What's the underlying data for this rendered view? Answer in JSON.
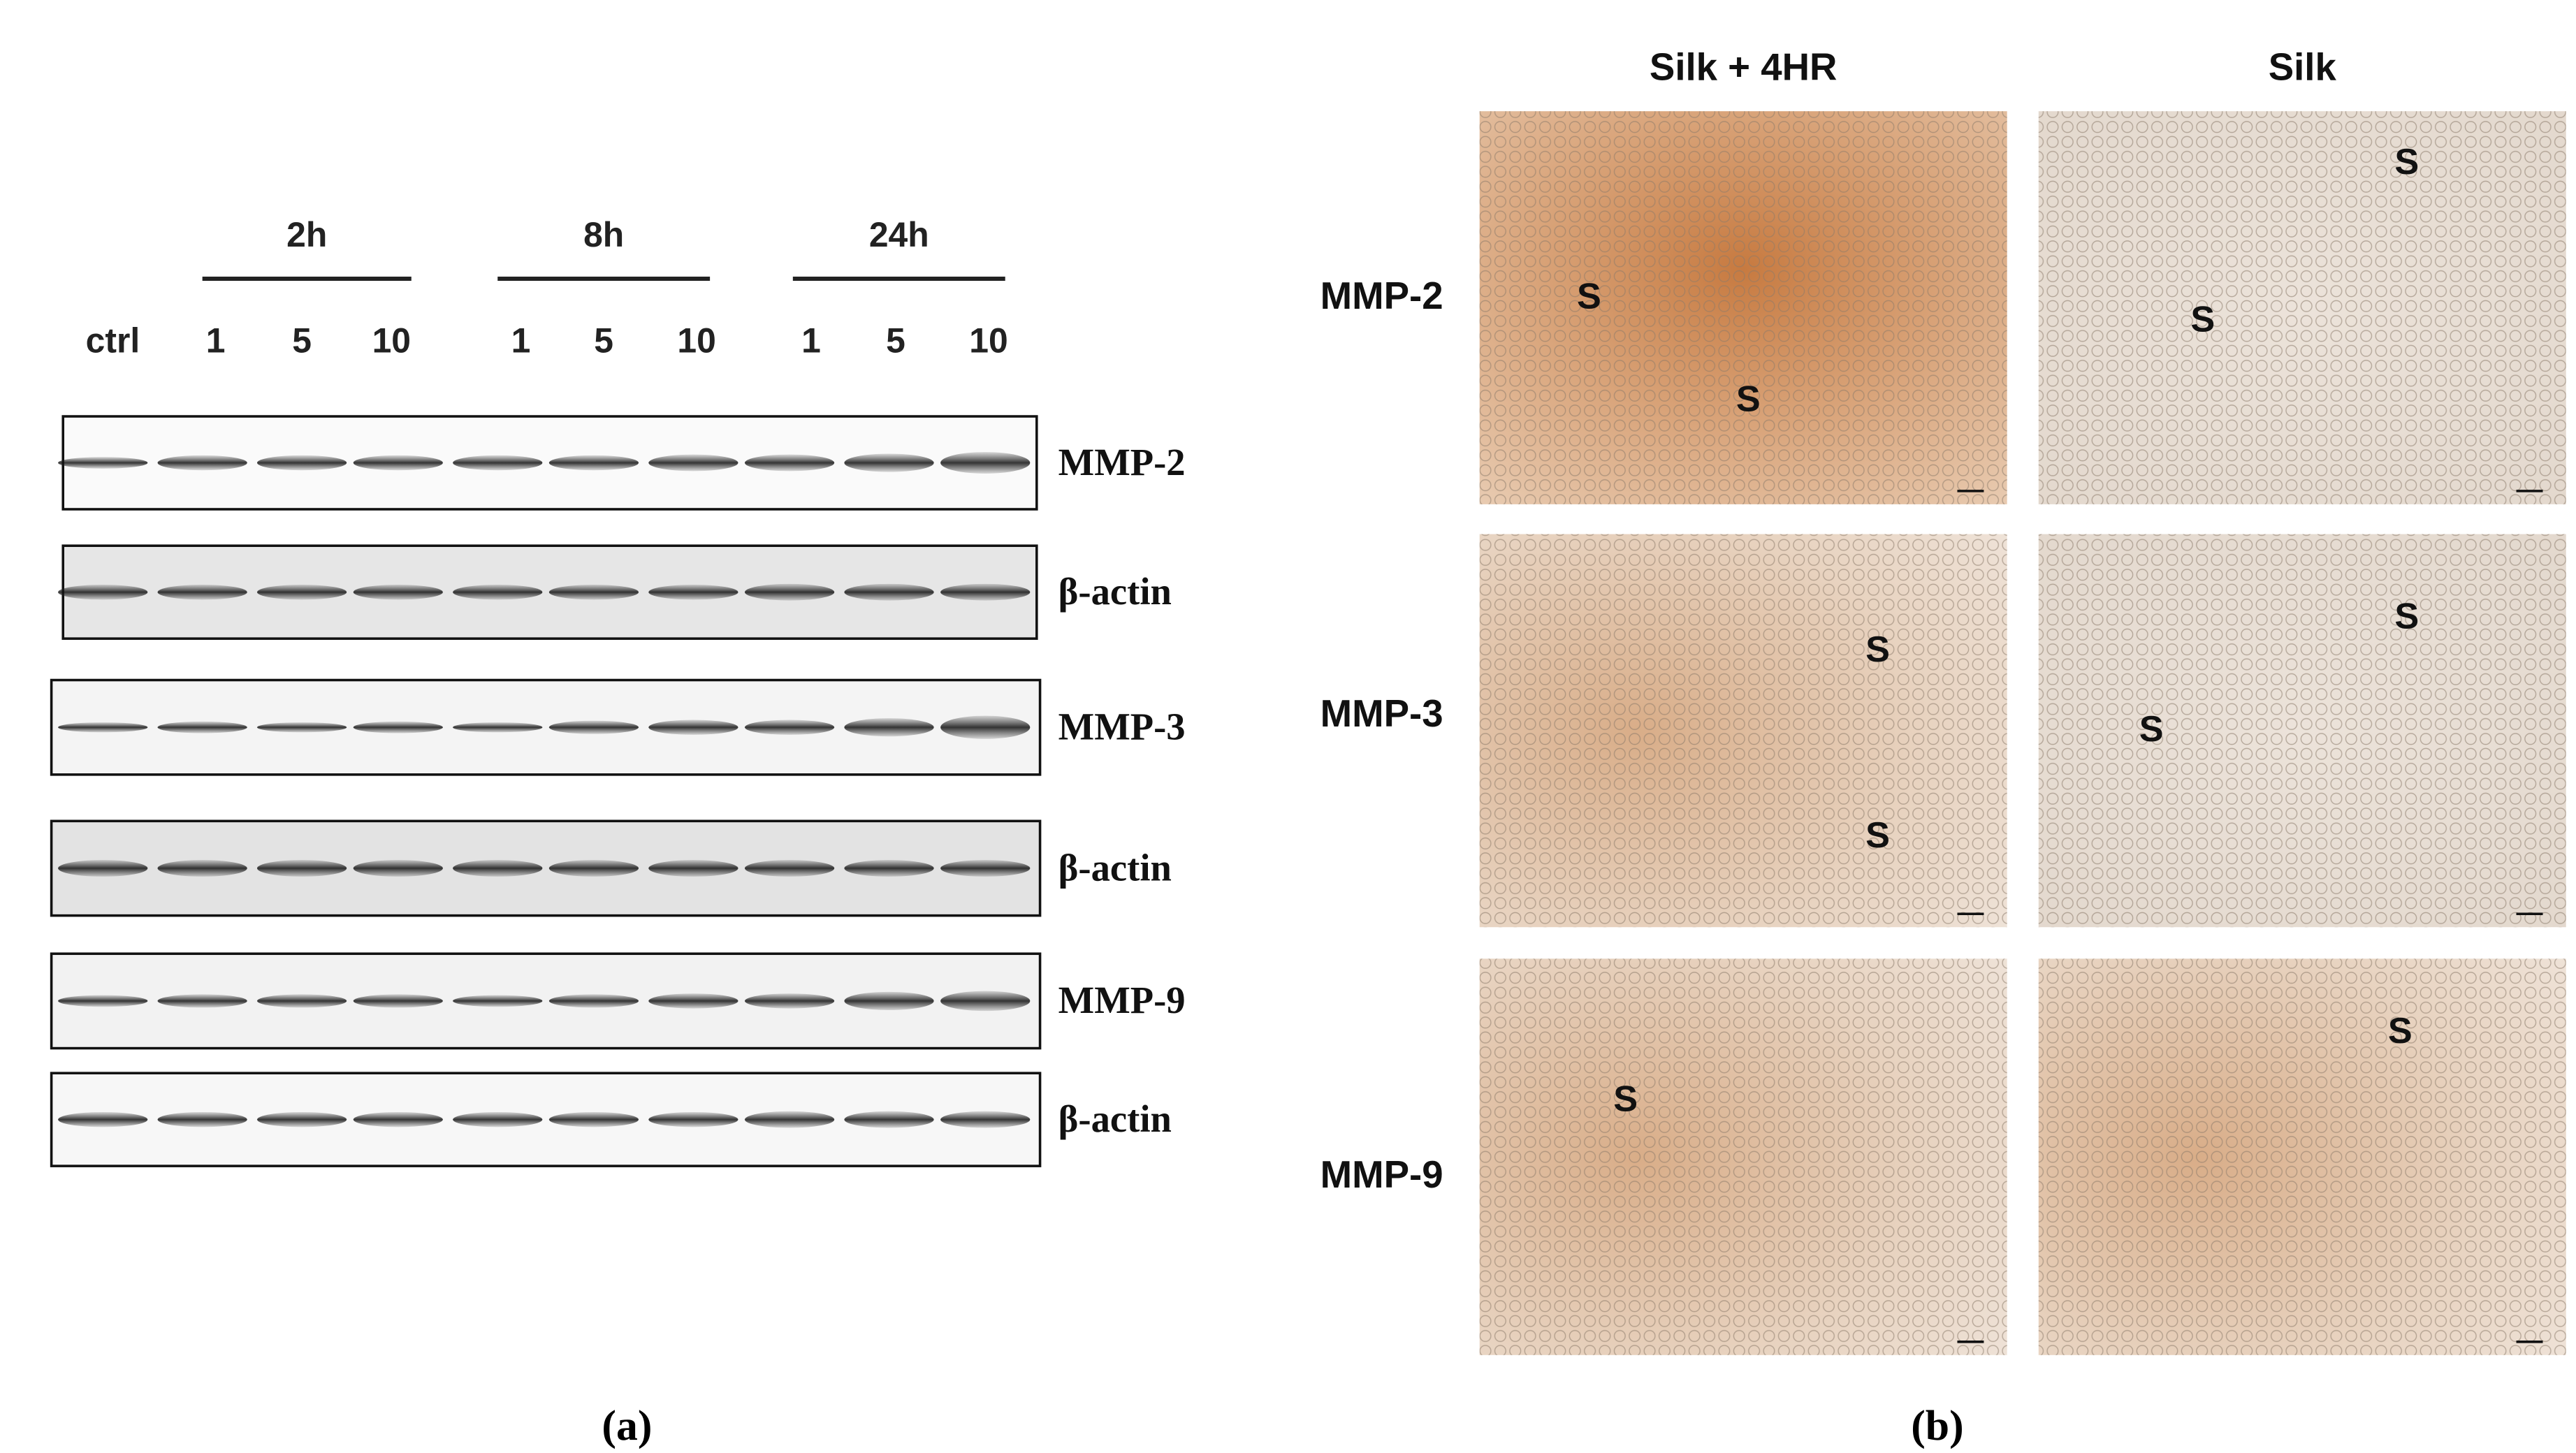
{
  "panel_a": {
    "time_groups": [
      "2h",
      "8h",
      "24h"
    ],
    "lanes": [
      "ctrl",
      "1",
      "5",
      "10",
      "1",
      "5",
      "10",
      "1",
      "5",
      "10"
    ],
    "blots": [
      "MMP-2",
      "β-actin",
      "MMP-3",
      "β-actin",
      "MMP-9",
      "β-actin"
    ],
    "caption": "(a)"
  },
  "panel_b": {
    "columns": [
      "Silk + 4HR",
      "Silk"
    ],
    "rows": [
      "MMP-2",
      "MMP-3",
      "MMP-9"
    ],
    "images": [
      [
        [
          "S",
          "S"
        ],
        [
          "S",
          "S"
        ]
      ],
      [
        [
          "S",
          "S"
        ],
        [
          "S",
          "S"
        ]
      ],
      [
        [
          "S"
        ],
        [
          "S"
        ]
      ]
    ],
    "caption": "(b)"
  }
}
